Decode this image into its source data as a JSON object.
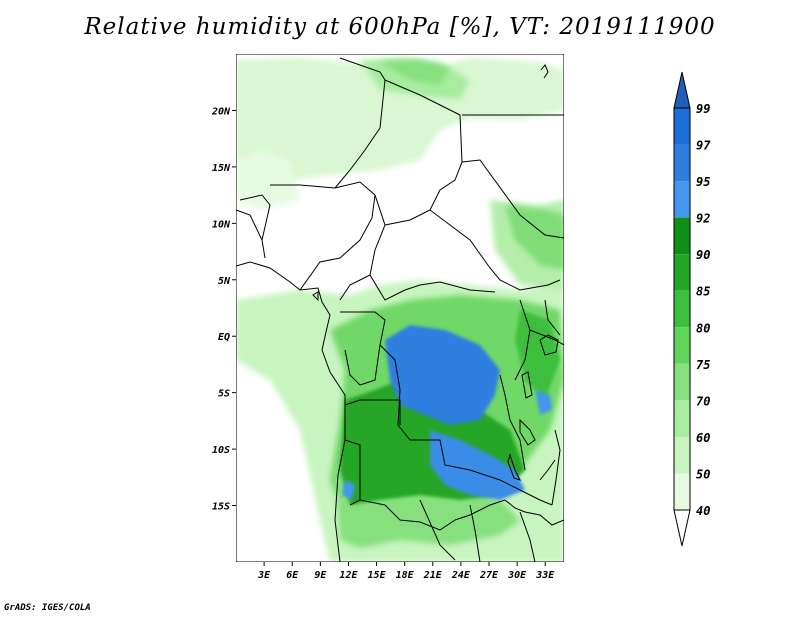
{
  "title": "Relative humidity at 600hPa [%], VT: 2019111900",
  "credit": "GrADS: IGES/COLA",
  "map": {
    "lon_range": [
      0,
      35
    ],
    "lat_range": [
      -20,
      25
    ],
    "lat_labels": [
      "20N",
      "15N",
      "10N",
      "5N",
      "EQ",
      "5S",
      "10S",
      "15S"
    ],
    "lon_labels": [
      "3E",
      "6E",
      "9E",
      "12E",
      "15E",
      "18E",
      "21E",
      "24E",
      "27E",
      "30E",
      "33E"
    ]
  },
  "colorbar": {
    "levels": [
      {
        "label": "99",
        "color": "#1e6ed8"
      },
      {
        "label": "97",
        "color": "#2f7fe0"
      },
      {
        "label": "95",
        "color": "#4596ec"
      },
      {
        "label": "92",
        "color": "#0f8f14"
      },
      {
        "label": "90",
        "color": "#25a628"
      },
      {
        "label": "85",
        "color": "#3cbf3c"
      },
      {
        "label": "80",
        "color": "#5fd35a"
      },
      {
        "label": "75",
        "color": "#86e07e"
      },
      {
        "label": "70",
        "color": "#a8eca0"
      },
      {
        "label": "60",
        "color": "#c8f4c0"
      },
      {
        "label": "50",
        "color": "#e6fbe2"
      },
      {
        "label": "40",
        "color": "#ffffff"
      }
    ],
    "top_color": "#1f5fb8",
    "bottom_color": "#ffffff"
  }
}
